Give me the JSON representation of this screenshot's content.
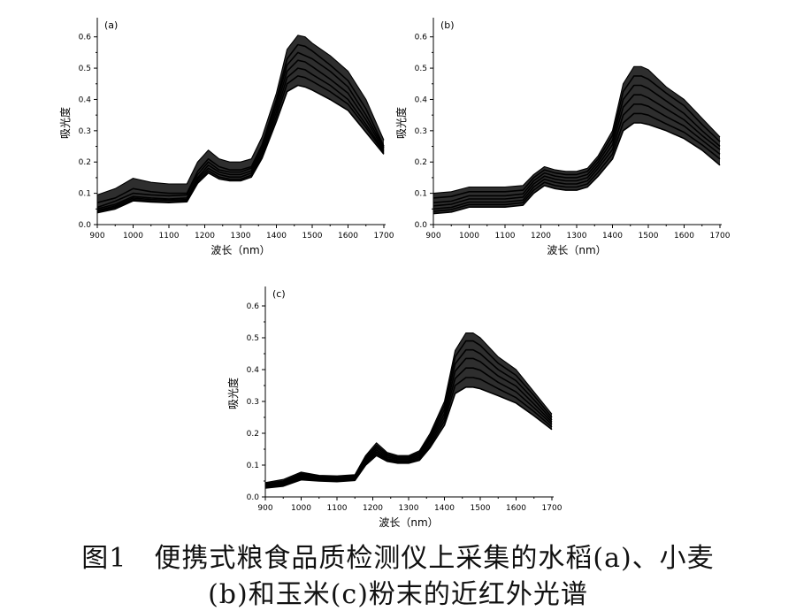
{
  "figure": {
    "caption_line1": "图1　便携式粮食品质检测仪上采集的水稻(a)、小麦",
    "caption_line2": "(b)和玉米(c)粉末的近红外光谱"
  },
  "chart_data": [
    {
      "type": "line",
      "panel_label": "(a)",
      "xlabel": "波长（nm）",
      "ylabel": "吸光度",
      "xlim": [
        900,
        1700
      ],
      "ylim": [
        0.0,
        0.65
      ],
      "xticks": [
        900,
        1000,
        1100,
        1200,
        1300,
        1400,
        1500,
        1600,
        1700
      ],
      "yticks": [
        0.0,
        0.1,
        0.2,
        0.3,
        0.4,
        0.5,
        0.6
      ],
      "ytick_labels": [
        "0.0",
        "0.1",
        "0.2",
        "0.3",
        "0.4",
        "0.5",
        "0.6"
      ],
      "grid": false,
      "line_color": "#000000",
      "x": [
        900,
        950,
        1000,
        1050,
        1100,
        1150,
        1180,
        1210,
        1240,
        1270,
        1300,
        1330,
        1360,
        1400,
        1430,
        1460,
        1480,
        1500,
        1550,
        1600,
        1650,
        1700
      ],
      "series": [
        {
          "values": [
            0.095,
            0.115,
            0.148,
            0.135,
            0.13,
            0.13,
            0.2,
            0.238,
            0.21,
            0.2,
            0.2,
            0.21,
            0.28,
            0.42,
            0.56,
            0.605,
            0.6,
            0.58,
            0.54,
            0.49,
            0.4,
            0.27
          ]
        },
        {
          "values": [
            0.07,
            0.085,
            0.115,
            0.105,
            0.1,
            0.1,
            0.17,
            0.21,
            0.185,
            0.175,
            0.175,
            0.185,
            0.255,
            0.4,
            0.53,
            0.575,
            0.57,
            0.555,
            0.51,
            0.46,
            0.37,
            0.25
          ]
        },
        {
          "values": [
            0.055,
            0.075,
            0.1,
            0.095,
            0.092,
            0.095,
            0.16,
            0.2,
            0.175,
            0.168,
            0.168,
            0.18,
            0.25,
            0.39,
            0.51,
            0.55,
            0.54,
            0.53,
            0.49,
            0.44,
            0.35,
            0.245
          ]
        },
        {
          "values": [
            0.05,
            0.065,
            0.09,
            0.085,
            0.082,
            0.085,
            0.15,
            0.19,
            0.168,
            0.16,
            0.16,
            0.172,
            0.24,
            0.375,
            0.49,
            0.525,
            0.52,
            0.505,
            0.465,
            0.42,
            0.335,
            0.24
          ]
        },
        {
          "values": [
            0.045,
            0.06,
            0.085,
            0.08,
            0.078,
            0.08,
            0.145,
            0.18,
            0.16,
            0.152,
            0.152,
            0.165,
            0.23,
            0.36,
            0.47,
            0.5,
            0.495,
            0.48,
            0.445,
            0.4,
            0.32,
            0.235
          ]
        },
        {
          "values": [
            0.042,
            0.055,
            0.08,
            0.075,
            0.072,
            0.076,
            0.138,
            0.172,
            0.152,
            0.145,
            0.145,
            0.158,
            0.22,
            0.345,
            0.45,
            0.475,
            0.47,
            0.458,
            0.425,
            0.385,
            0.31,
            0.23
          ]
        },
        {
          "values": [
            0.038,
            0.05,
            0.076,
            0.072,
            0.07,
            0.073,
            0.132,
            0.165,
            0.146,
            0.14,
            0.14,
            0.152,
            0.212,
            0.33,
            0.425,
            0.445,
            0.44,
            0.43,
            0.4,
            0.365,
            0.295,
            0.225
          ]
        }
      ]
    },
    {
      "type": "line",
      "panel_label": "(b)",
      "xlabel": "波长（nm）",
      "ylabel": "吸光度",
      "xlim": [
        900,
        1700
      ],
      "ylim": [
        0.0,
        0.65
      ],
      "xticks": [
        900,
        1000,
        1100,
        1200,
        1300,
        1400,
        1500,
        1600,
        1700
      ],
      "yticks": [
        0.0,
        0.1,
        0.2,
        0.3,
        0.4,
        0.5,
        0.6
      ],
      "ytick_labels": [
        "0.0",
        "0.1",
        "0.2",
        "0.3",
        "0.4",
        "0.5",
        "0.6"
      ],
      "grid": false,
      "line_color": "#000000",
      "x": [
        900,
        950,
        1000,
        1050,
        1100,
        1150,
        1180,
        1210,
        1240,
        1270,
        1300,
        1330,
        1360,
        1400,
        1430,
        1460,
        1480,
        1500,
        1550,
        1600,
        1650,
        1700
      ],
      "series": [
        {
          "values": [
            0.1,
            0.105,
            0.12,
            0.12,
            0.12,
            0.125,
            0.16,
            0.185,
            0.175,
            0.17,
            0.17,
            0.18,
            0.22,
            0.3,
            0.45,
            0.505,
            0.505,
            0.495,
            0.44,
            0.4,
            0.34,
            0.28
          ]
        },
        {
          "values": [
            0.085,
            0.09,
            0.105,
            0.105,
            0.105,
            0.11,
            0.15,
            0.175,
            0.165,
            0.16,
            0.16,
            0.17,
            0.21,
            0.285,
            0.425,
            0.475,
            0.475,
            0.465,
            0.42,
            0.38,
            0.32,
            0.265
          ]
        },
        {
          "values": [
            0.07,
            0.075,
            0.092,
            0.092,
            0.092,
            0.098,
            0.14,
            0.165,
            0.155,
            0.15,
            0.15,
            0.16,
            0.2,
            0.27,
            0.4,
            0.445,
            0.445,
            0.435,
            0.395,
            0.355,
            0.3,
            0.25
          ]
        },
        {
          "values": [
            0.06,
            0.065,
            0.082,
            0.082,
            0.082,
            0.088,
            0.13,
            0.155,
            0.145,
            0.14,
            0.14,
            0.15,
            0.19,
            0.255,
            0.375,
            0.415,
            0.415,
            0.405,
            0.37,
            0.335,
            0.285,
            0.24
          ]
        },
        {
          "values": [
            0.05,
            0.055,
            0.072,
            0.072,
            0.072,
            0.078,
            0.12,
            0.145,
            0.135,
            0.13,
            0.13,
            0.14,
            0.18,
            0.24,
            0.35,
            0.385,
            0.385,
            0.378,
            0.345,
            0.315,
            0.27,
            0.225
          ]
        },
        {
          "values": [
            0.042,
            0.048,
            0.064,
            0.064,
            0.064,
            0.07,
            0.11,
            0.135,
            0.125,
            0.12,
            0.12,
            0.13,
            0.168,
            0.225,
            0.325,
            0.355,
            0.355,
            0.35,
            0.322,
            0.295,
            0.255,
            0.21
          ]
        },
        {
          "values": [
            0.035,
            0.04,
            0.056,
            0.056,
            0.056,
            0.062,
            0.1,
            0.125,
            0.115,
            0.11,
            0.11,
            0.12,
            0.155,
            0.21,
            0.3,
            0.325,
            0.325,
            0.32,
            0.3,
            0.275,
            0.238,
            0.19
          ]
        }
      ]
    },
    {
      "type": "line",
      "panel_label": "(c)",
      "xlabel": "波长（nm）",
      "ylabel": "吸光度",
      "xlim": [
        900,
        1700
      ],
      "ylim": [
        0.0,
        0.65
      ],
      "xticks": [
        900,
        1000,
        1100,
        1200,
        1300,
        1400,
        1500,
        1600,
        1700
      ],
      "yticks": [
        0.0,
        0.1,
        0.2,
        0.3,
        0.4,
        0.5,
        0.6
      ],
      "ytick_labels": [
        "0.0",
        "0.1",
        "0.2",
        "0.3",
        "0.4",
        "0.5",
        "0.6"
      ],
      "grid": false,
      "line_color": "#000000",
      "x": [
        900,
        950,
        1000,
        1050,
        1100,
        1150,
        1180,
        1210,
        1240,
        1270,
        1300,
        1330,
        1360,
        1400,
        1430,
        1460,
        1480,
        1500,
        1550,
        1600,
        1650,
        1700
      ],
      "series": [
        {
          "values": [
            0.045,
            0.055,
            0.078,
            0.068,
            0.066,
            0.07,
            0.13,
            0.17,
            0.14,
            0.13,
            0.13,
            0.145,
            0.2,
            0.3,
            0.46,
            0.515,
            0.515,
            0.5,
            0.44,
            0.4,
            0.33,
            0.26
          ]
        },
        {
          "values": [
            0.042,
            0.05,
            0.074,
            0.065,
            0.063,
            0.067,
            0.125,
            0.162,
            0.135,
            0.126,
            0.126,
            0.14,
            0.192,
            0.288,
            0.44,
            0.49,
            0.49,
            0.476,
            0.42,
            0.382,
            0.318,
            0.25
          ]
        },
        {
          "values": [
            0.038,
            0.046,
            0.07,
            0.062,
            0.06,
            0.064,
            0.12,
            0.155,
            0.13,
            0.122,
            0.122,
            0.135,
            0.185,
            0.275,
            0.418,
            0.462,
            0.462,
            0.45,
            0.4,
            0.365,
            0.305,
            0.242
          ]
        },
        {
          "values": [
            0.035,
            0.043,
            0.066,
            0.059,
            0.057,
            0.061,
            0.115,
            0.148,
            0.125,
            0.118,
            0.118,
            0.13,
            0.178,
            0.262,
            0.395,
            0.435,
            0.435,
            0.425,
            0.38,
            0.348,
            0.292,
            0.235
          ]
        },
        {
          "values": [
            0.032,
            0.04,
            0.062,
            0.056,
            0.054,
            0.058,
            0.11,
            0.142,
            0.12,
            0.114,
            0.114,
            0.125,
            0.17,
            0.25,
            0.372,
            0.405,
            0.405,
            0.398,
            0.36,
            0.33,
            0.28,
            0.228
          ]
        },
        {
          "values": [
            0.03,
            0.037,
            0.058,
            0.053,
            0.051,
            0.055,
            0.105,
            0.136,
            0.116,
            0.11,
            0.11,
            0.12,
            0.162,
            0.238,
            0.35,
            0.375,
            0.375,
            0.37,
            0.34,
            0.312,
            0.268,
            0.22
          ]
        },
        {
          "values": [
            0.028,
            0.034,
            0.054,
            0.05,
            0.048,
            0.052,
            0.1,
            0.13,
            0.112,
            0.106,
            0.106,
            0.115,
            0.155,
            0.225,
            0.325,
            0.345,
            0.345,
            0.34,
            0.318,
            0.295,
            0.255,
            0.212
          ]
        }
      ]
    }
  ]
}
